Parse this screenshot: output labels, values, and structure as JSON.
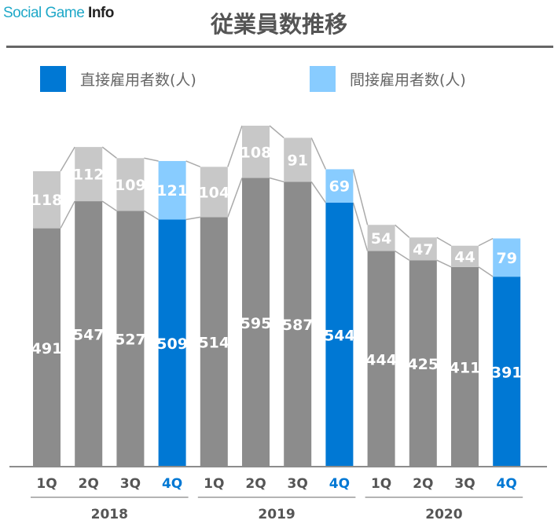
{
  "chart_data": {
    "type": "bar",
    "stacked": true,
    "title": "従業員数推移",
    "categories": [
      "1Q",
      "2Q",
      "3Q",
      "4Q",
      "1Q",
      "2Q",
      "3Q",
      "4Q",
      "1Q",
      "2Q",
      "3Q",
      "4Q"
    ],
    "groups": [
      {
        "label": "2018",
        "categories": 4
      },
      {
        "label": "2019",
        "categories": 4
      },
      {
        "label": "2020",
        "categories": 4
      }
    ],
    "highlighted": [
      false,
      false,
      false,
      true,
      false,
      false,
      false,
      true,
      false,
      false,
      false,
      true
    ],
    "series": [
      {
        "name": "直接雇用者数(人)",
        "values": [
          491,
          547,
          527,
          509,
          514,
          595,
          587,
          544,
          444,
          425,
          411,
          391
        ],
        "color": "#0078d4",
        "base_color": "#8c8c8c"
      },
      {
        "name": "間接雇用者数(人)",
        "values": [
          118,
          112,
          109,
          121,
          104,
          108,
          91,
          69,
          54,
          47,
          44,
          79
        ],
        "color": "#88ccff",
        "base_color": "#c8c8c8"
      }
    ],
    "ylim": [
      0,
      703
    ],
    "grid": false,
    "legend_position": "top"
  },
  "watermark": {
    "prefix": "Social Game ",
    "suffix": "Info"
  }
}
